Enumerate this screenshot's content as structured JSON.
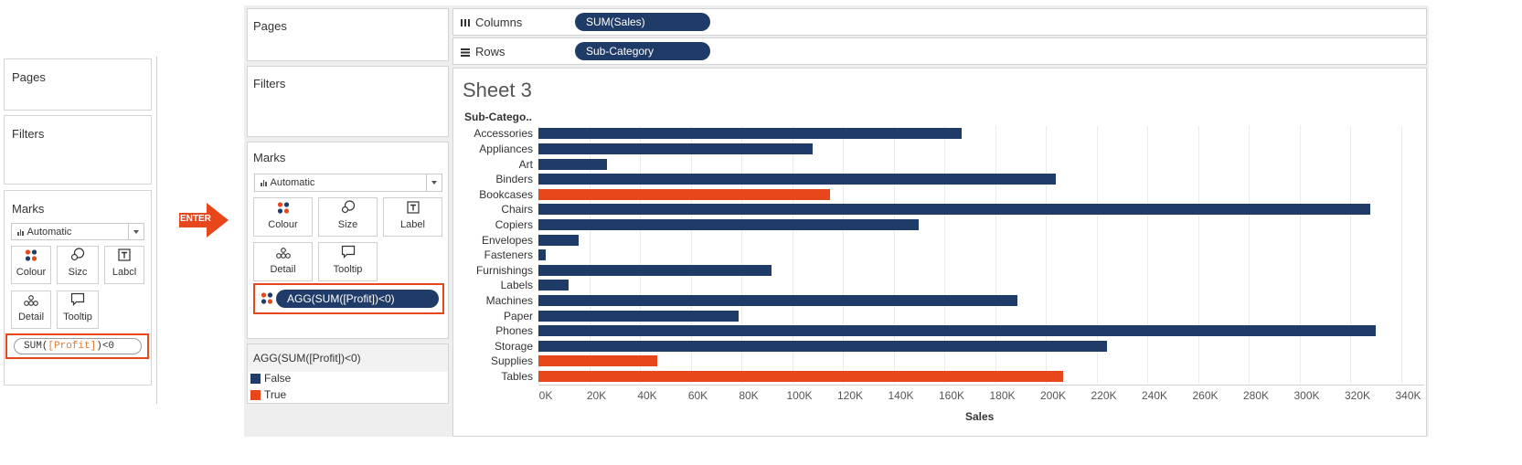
{
  "left_panel": {
    "pages_title": "Pages",
    "filters_title": "Filters",
    "marks_title": "Marks",
    "mark_type": "Automatic",
    "buttons": {
      "colour": "Colour",
      "size": "Sizc",
      "label": "Labcl",
      "detail": "Detail",
      "tooltip": "Tooltip"
    },
    "calc_prefix": "SUM(",
    "calc_field": "[Profit]",
    "calc_suffix": ")<0"
  },
  "enter_arrow": {
    "label": "ENTER",
    "color": "#e8471c"
  },
  "right_panel": {
    "pages_title": "Pages",
    "filters_title": "Filters",
    "marks_title": "Marks",
    "mark_type": "Automatic",
    "buttons": {
      "colour": "Colour",
      "size": "Size",
      "label": "Label",
      "detail": "Detail",
      "tooltip": "Tooltip"
    },
    "colour_pill": "AGG(SUM([Profit])<0)",
    "legend": {
      "title": "AGG(SUM([Profit])<0)",
      "items": [
        {
          "label": "False",
          "color": "#1f3b68"
        },
        {
          "label": "True",
          "color": "#e8471c"
        }
      ]
    }
  },
  "shelves": {
    "columns_label": "Columns",
    "columns_pill": "SUM(Sales)",
    "rows_label": "Rows",
    "rows_pill": "Sub-Category"
  },
  "sheet": {
    "title": "Sheet 3",
    "row_header": "Sub-Catego.."
  },
  "chart_data": {
    "type": "bar",
    "orientation": "horizontal",
    "categories": [
      "Accessories",
      "Appliances",
      "Art",
      "Binders",
      "Bookcases",
      "Chairs",
      "Copiers",
      "Envelopes",
      "Fasteners",
      "Furnishings",
      "Labels",
      "Machines",
      "Paper",
      "Phones",
      "Storage",
      "Supplies",
      "Tables"
    ],
    "values": [
      167000,
      108000,
      27000,
      204000,
      115000,
      328000,
      150000,
      16000,
      3000,
      92000,
      12000,
      189000,
      79000,
      330000,
      224000,
      47000,
      207000
    ],
    "negative_profit": [
      false,
      false,
      false,
      false,
      true,
      false,
      false,
      false,
      false,
      false,
      false,
      false,
      false,
      false,
      false,
      true,
      true
    ],
    "colors": {
      "false": "#1f3b68",
      "true": "#e8471c"
    },
    "xlabel": "Sales",
    "ylabel": "Sub-Catego..",
    "xlim": [
      0,
      345000
    ],
    "xticks": [
      "0K",
      "20K",
      "40K",
      "60K",
      "80K",
      "100K",
      "120K",
      "140K",
      "160K",
      "180K",
      "200K",
      "220K",
      "240K",
      "260K",
      "280K",
      "300K",
      "320K",
      "340K"
    ],
    "grid": true
  }
}
